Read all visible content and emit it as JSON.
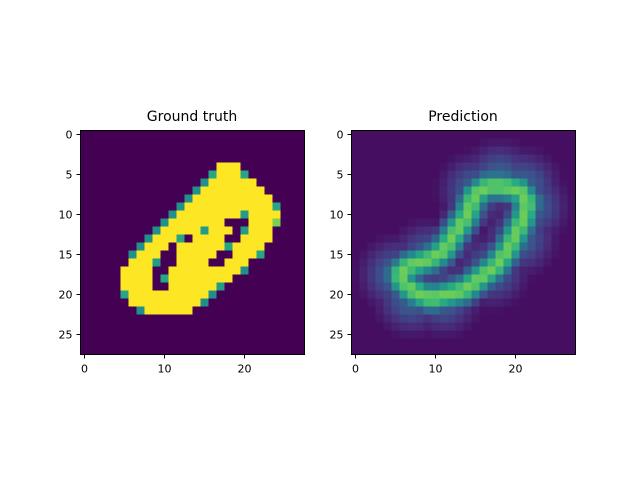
{
  "chart_data": [
    {
      "type": "heatmap",
      "title": "Ground truth",
      "colormap": "viridis",
      "grid": false,
      "rows": 28,
      "cols": 28,
      "xlim": [
        -0.5,
        27.5
      ],
      "ylim": [
        27.5,
        -0.5
      ],
      "xticks": [
        0,
        10,
        20
      ],
      "yticks": [
        0,
        5,
        10,
        15,
        20,
        25
      ],
      "xtick_labels": [
        "0",
        "10",
        "20"
      ],
      "ytick_labels": [
        "0",
        "5",
        "10",
        "15",
        "20",
        "25"
      ],
      "value_range": [
        0,
        1
      ],
      "row_spans": [
        [
          {
            "c0": 17,
            "c1": 19,
            "v": 1.0
          }
        ],
        [
          {
            "c0": 16,
            "c1": 16,
            "v": 0.6
          },
          {
            "c0": 17,
            "c1": 19,
            "v": 1.0
          },
          {
            "c0": 20,
            "c1": 20,
            "v": 0.6
          }
        ],
        [
          {
            "c0": 15,
            "c1": 15,
            "v": 0.5
          },
          {
            "c0": 16,
            "c1": 21,
            "v": 1.0
          }
        ],
        [
          {
            "c0": 14,
            "c1": 14,
            "v": 0.5
          },
          {
            "c0": 15,
            "c1": 22,
            "v": 1.0
          }
        ],
        [
          {
            "c0": 13,
            "c1": 13,
            "v": 0.5
          },
          {
            "c0": 14,
            "c1": 23,
            "v": 1.0
          }
        ],
        [
          {
            "c0": 12,
            "c1": 12,
            "v": 0.5
          },
          {
            "c0": 13,
            "c1": 23,
            "v": 1.0
          },
          {
            "c0": 24,
            "c1": 24,
            "v": 0.6
          }
        ],
        [
          {
            "c0": 11,
            "c1": 11,
            "v": 0.5
          },
          {
            "c0": 12,
            "c1": 19,
            "v": 1.0
          },
          {
            "c0": 20,
            "c1": 20,
            "v": 0.55
          },
          {
            "c0": 21,
            "c1": 24,
            "v": 1.0
          }
        ],
        [
          {
            "c0": 10,
            "c1": 10,
            "v": 0.5
          },
          {
            "c0": 11,
            "c1": 17,
            "v": 1.0
          },
          {
            "c0": 21,
            "c1": 23,
            "v": 1.0
          },
          {
            "c0": 24,
            "c1": 24,
            "v": 0.8
          }
        ],
        [
          {
            "c0": 9,
            "c1": 9,
            "v": 0.5
          },
          {
            "c0": 10,
            "c1": 14,
            "v": 1.0
          },
          {
            "c0": 15,
            "c1": 15,
            "v": 0.55
          },
          {
            "c0": 16,
            "c1": 18,
            "v": 1.0
          },
          {
            "c0": 20,
            "c1": 20,
            "v": 0.55
          },
          {
            "c0": 21,
            "c1": 23,
            "v": 1.0
          }
        ],
        [
          {
            "c0": 8,
            "c1": 8,
            "v": 0.5
          },
          {
            "c0": 9,
            "c1": 11,
            "v": 1.0
          },
          {
            "c0": 12,
            "c1": 12,
            "v": 0.6
          },
          {
            "c0": 14,
            "c1": 17,
            "v": 1.0
          },
          {
            "c0": 20,
            "c1": 23,
            "v": 1.0
          }
        ],
        [
          {
            "c0": 7,
            "c1": 7,
            "v": 0.5
          },
          {
            "c0": 8,
            "c1": 10,
            "v": 1.0
          },
          {
            "c0": 12,
            "c1": 17,
            "v": 1.0
          },
          {
            "c0": 18,
            "c1": 18,
            "v": 0.6
          },
          {
            "c0": 19,
            "c1": 22,
            "v": 1.0
          }
        ],
        [
          {
            "c0": 6,
            "c1": 6,
            "v": 0.5
          },
          {
            "c0": 7,
            "c1": 9,
            "v": 1.0
          },
          {
            "c0": 12,
            "c1": 16,
            "v": 1.0
          },
          {
            "c0": 19,
            "c1": 21,
            "v": 1.0
          },
          {
            "c0": 22,
            "c1": 22,
            "v": 0.6
          }
        ],
        [
          {
            "c0": 6,
            "c1": 8,
            "v": 1.0
          },
          {
            "c0": 9,
            "c1": 9,
            "v": 0.55
          },
          {
            "c0": 12,
            "c1": 15,
            "v": 1.0
          },
          {
            "c0": 18,
            "c1": 20,
            "v": 1.0
          }
        ],
        [
          {
            "c0": 5,
            "c1": 8,
            "v": 1.0
          },
          {
            "c0": 11,
            "c1": 15,
            "v": 1.0
          },
          {
            "c0": 16,
            "c1": 19,
            "v": 1.0
          },
          {
            "c0": 20,
            "c1": 20,
            "v": 0.5
          }
        ],
        [
          {
            "c0": 5,
            "c1": 8,
            "v": 1.0
          },
          {
            "c0": 10,
            "c1": 10,
            "v": 0.6
          },
          {
            "c0": 11,
            "c1": 18,
            "v": 1.0
          }
        ],
        [
          {
            "c0": 5,
            "c1": 8,
            "v": 1.0
          },
          {
            "c0": 11,
            "c1": 16,
            "v": 1.0
          },
          {
            "c0": 17,
            "c1": 17,
            "v": 0.55
          }
        ],
        [
          {
            "c0": 5,
            "c1": 5,
            "v": 0.6
          },
          {
            "c0": 6,
            "c1": 15,
            "v": 1.0
          },
          {
            "c0": 16,
            "c1": 16,
            "v": 0.5
          }
        ],
        [
          {
            "c0": 6,
            "c1": 14,
            "v": 1.0
          },
          {
            "c0": 15,
            "c1": 15,
            "v": 0.5
          }
        ],
        [
          {
            "c0": 7,
            "c1": 7,
            "v": 0.5
          },
          {
            "c0": 8,
            "c1": 13,
            "v": 1.0
          }
        ]
      ],
      "row_offset": 4
    },
    {
      "type": "heatmap",
      "title": "Prediction",
      "colormap": "viridis",
      "grid": false,
      "rows": 28,
      "cols": 28,
      "xlim": [
        -0.5,
        27.5
      ],
      "ylim": [
        27.5,
        -0.5
      ],
      "xticks": [
        0,
        10,
        20
      ],
      "yticks": [
        0,
        5,
        10,
        15,
        20,
        25
      ],
      "xtick_labels": [
        "0",
        "10",
        "20"
      ],
      "ytick_labels": [
        "0",
        "5",
        "10",
        "15",
        "20",
        "25"
      ],
      "value_range": [
        0,
        1
      ],
      "background": 0.04,
      "stroke_points": [
        [
          6,
          18.5
        ],
        [
          5.5,
          17.5
        ],
        [
          6.5,
          16.5
        ],
        [
          8,
          16
        ],
        [
          9.5,
          15.5
        ],
        [
          11,
          14.5
        ],
        [
          12,
          13
        ],
        [
          13,
          11.5
        ],
        [
          14,
          10
        ],
        [
          14.5,
          8.5
        ],
        [
          15,
          7.5
        ],
        [
          16.5,
          6.5
        ],
        [
          18.5,
          6.5
        ],
        [
          20.5,
          7
        ],
        [
          21.5,
          8.5
        ],
        [
          21,
          10.5
        ],
        [
          20,
          12.5
        ],
        [
          19,
          14.5
        ],
        [
          17.5,
          16.5
        ],
        [
          15.5,
          18
        ],
        [
          13.5,
          19.5
        ],
        [
          11.5,
          20
        ],
        [
          9.5,
          20.5
        ],
        [
          8,
          20
        ],
        [
          6.5,
          19
        ]
      ],
      "halo_points": [
        [
          15,
          7
        ],
        [
          18,
          5.5
        ],
        [
          21,
          6.5
        ],
        [
          22,
          9
        ],
        [
          20.5,
          13
        ],
        [
          17,
          17
        ],
        [
          11,
          20.5
        ],
        [
          7,
          20.5
        ],
        [
          5,
          17.5
        ],
        [
          9,
          15.5
        ]
      ],
      "peak_value": 0.78,
      "halo_value": 0.32
    }
  ]
}
